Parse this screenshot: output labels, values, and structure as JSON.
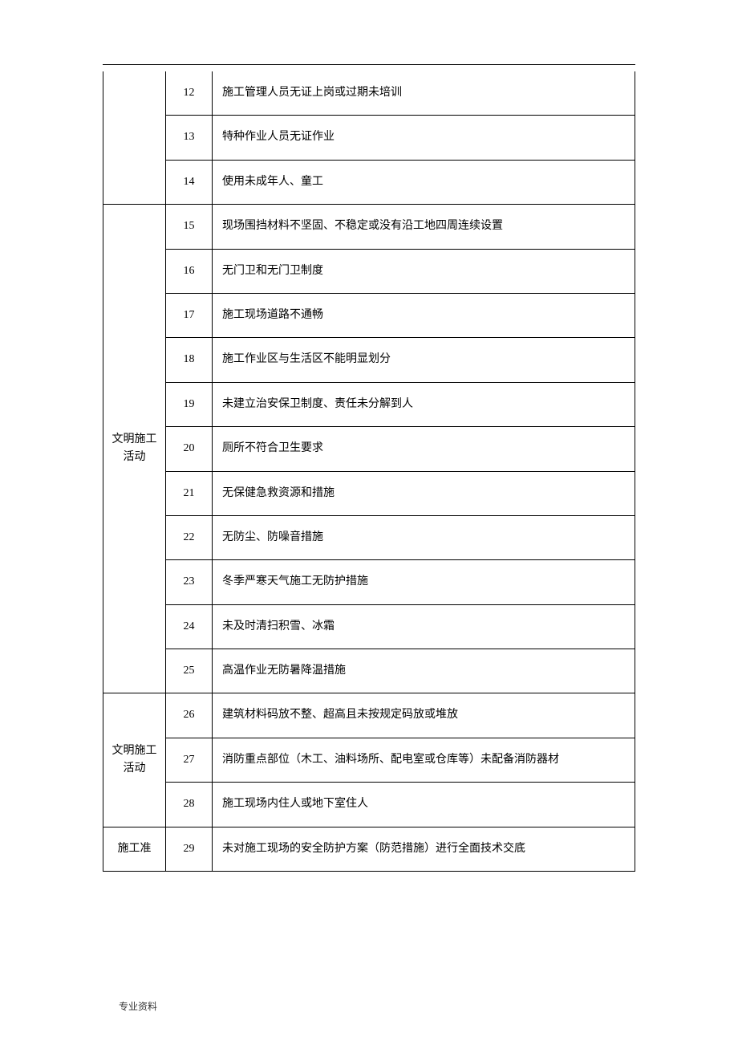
{
  "header_line": true,
  "categories": {
    "cat1": "",
    "cat2": "文明施工活动",
    "cat3": "文明施工活动",
    "cat4": "施工准"
  },
  "rows": [
    {
      "num": "12",
      "desc": "施工管理人员无证上岗或过期未培训"
    },
    {
      "num": "13",
      "desc": "特种作业人员无证作业"
    },
    {
      "num": "14",
      "desc": "使用未成年人、童工"
    },
    {
      "num": "15",
      "desc": "现场围挡材料不坚固、不稳定或没有沿工地四周连续设置"
    },
    {
      "num": "16",
      "desc": "无门卫和无门卫制度"
    },
    {
      "num": "17",
      "desc": "施工现场道路不通畅"
    },
    {
      "num": "18",
      "desc": "施工作业区与生活区不能明显划分"
    },
    {
      "num": "19",
      "desc": "未建立治安保卫制度、责任未分解到人"
    },
    {
      "num": "20",
      "desc": "厕所不符合卫生要求"
    },
    {
      "num": "21",
      "desc": "无保健急救资源和措施"
    },
    {
      "num": "22",
      "desc": "无防尘、防噪音措施"
    },
    {
      "num": "23",
      "desc": "冬季严寒天气施工无防护措施"
    },
    {
      "num": "24",
      "desc": "未及时清扫积雪、冰霜"
    },
    {
      "num": "25",
      "desc": "高温作业无防暑降温措施"
    },
    {
      "num": "26",
      "desc": "建筑材料码放不整、超高且未按规定码放或堆放"
    },
    {
      "num": "27",
      "desc": "消防重点部位（木工、油料场所、配电室或仓库等）未配备消防器材"
    },
    {
      "num": "28",
      "desc": "施工现场内住人或地下室住人"
    },
    {
      "num": "29",
      "desc": "未对施工现场的安全防护方案（防范措施）进行全面技术交底"
    }
  ],
  "footer": "专业资料",
  "colors": {
    "border": "#000000",
    "background": "#ffffff",
    "text": "#000000",
    "footer_text": "#333333"
  },
  "column_widths": {
    "category": 78,
    "num": 58,
    "desc": "auto"
  },
  "font_sizes": {
    "cell": 14,
    "footer": 12
  }
}
